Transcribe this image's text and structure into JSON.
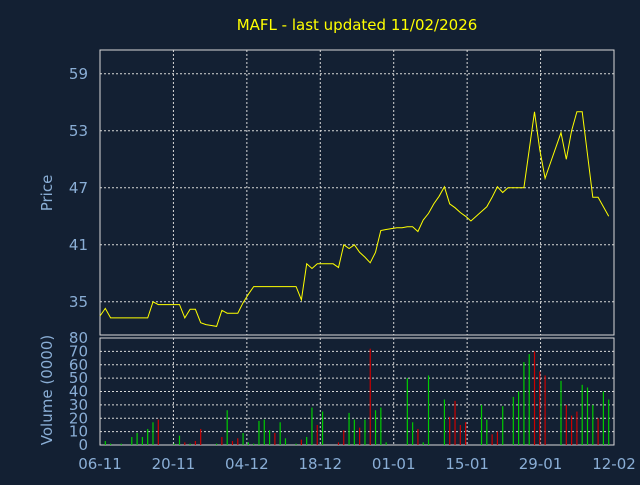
{
  "title": "MAFL - last updated 11/02/2026",
  "colors": {
    "background": "#132033",
    "frame": "#d8d8d8",
    "grid": "#d8d8d8",
    "price_line": "#ffff00",
    "title": "#ffff00",
    "axis_text": "#8aaed6",
    "volume_up": "#00cc00",
    "volume_down": "#cc0000"
  },
  "chart_data": [
    {
      "type": "line",
      "name": "price",
      "ylabel": "Price",
      "ylim": [
        31.5,
        61.5
      ],
      "yticks": [
        35,
        41,
        47,
        53,
        59
      ],
      "grid": true,
      "x_ticks": [
        "06-11",
        "20-11",
        "04-12",
        "18-12",
        "01-01",
        "15-01",
        "29-01",
        "12-02"
      ],
      "x_range": [
        0,
        97
      ],
      "x": [
        0,
        1,
        2,
        3,
        4,
        5,
        6,
        7,
        8,
        9,
        10,
        11,
        12,
        13,
        14,
        15,
        16,
        17,
        18,
        19,
        20,
        21,
        22,
        23,
        24,
        25,
        26,
        27,
        28,
        29,
        30,
        31,
        32,
        33,
        34,
        35,
        36,
        37,
        38,
        39,
        40,
        41,
        42,
        43,
        44,
        45,
        46,
        47,
        48,
        49,
        50,
        51,
        52,
        53,
        54,
        55,
        56,
        57,
        58,
        59,
        60,
        61,
        62,
        63,
        64,
        65,
        66,
        67,
        68,
        69,
        70,
        71,
        72,
        73,
        74,
        75,
        76,
        77,
        78,
        79,
        80,
        81,
        82,
        83,
        84,
        85,
        86,
        87,
        88,
        89,
        90,
        91,
        92,
        93,
        94,
        95,
        96
      ],
      "values": [
        33.5,
        34.3,
        33.3,
        33.3,
        33.3,
        33.3,
        33.3,
        33.3,
        33.3,
        33.3,
        35.0,
        34.7,
        34.7,
        34.7,
        34.7,
        34.7,
        33.3,
        34.2,
        34.2,
        32.8,
        32.6,
        32.5,
        32.4,
        34.1,
        33.8,
        33.8,
        33.8,
        34.9,
        35.8,
        36.6,
        36.6,
        36.6,
        36.6,
        36.6,
        36.6,
        36.6,
        36.6,
        36.6,
        35.2,
        39.0,
        38.5,
        39.0,
        39.0,
        39.0,
        39.0,
        38.6,
        41.0,
        40.6,
        41.0,
        40.2,
        39.7,
        39.1,
        40.2,
        42.5,
        42.6,
        42.7,
        42.8,
        42.8,
        42.9,
        42.9,
        42.4,
        43.6,
        44.3,
        45.3,
        46.1,
        47.1,
        45.3,
        44.9,
        44.4,
        44.0,
        43.5,
        44.0,
        44.5,
        45.0,
        46.0,
        47.1,
        46.5,
        47.0,
        47.0,
        47.0,
        47.0,
        51.0,
        55.0,
        51.0,
        48.0,
        49.6,
        51.2,
        52.8,
        50.0,
        53.0,
        55.0,
        55.0,
        50.5,
        46.0,
        46.0,
        45.0,
        44.0
      ]
    },
    {
      "type": "bar",
      "name": "volume",
      "ylabel": "Volume (0000)",
      "ylim": [
        0,
        80
      ],
      "yticks": [
        0,
        10,
        20,
        30,
        40,
        50,
        60,
        70,
        80
      ],
      "grid": true,
      "x_ticks": [
        "06-11",
        "20-11",
        "04-12",
        "18-12",
        "01-01",
        "15-01",
        "29-01",
        "12-02"
      ],
      "x_range": [
        0,
        97
      ],
      "bars": [
        {
          "x": 1,
          "v": 3,
          "up": true
        },
        {
          "x": 2,
          "v": 1,
          "up": true
        },
        {
          "x": 4,
          "v": 1,
          "up": true
        },
        {
          "x": 6,
          "v": 6,
          "up": true
        },
        {
          "x": 7,
          "v": 9,
          "up": true
        },
        {
          "x": 8,
          "v": 6,
          "up": true
        },
        {
          "x": 9,
          "v": 12,
          "up": true
        },
        {
          "x": 10,
          "v": 17,
          "up": true
        },
        {
          "x": 11,
          "v": 19,
          "up": false
        },
        {
          "x": 14,
          "v": 1,
          "up": true
        },
        {
          "x": 15,
          "v": 7,
          "up": true
        },
        {
          "x": 16,
          "v": 2,
          "up": false
        },
        {
          "x": 17,
          "v": 1,
          "up": true
        },
        {
          "x": 18,
          "v": 3,
          "up": false
        },
        {
          "x": 19,
          "v": 12,
          "up": false
        },
        {
          "x": 22,
          "v": 1,
          "up": true
        },
        {
          "x": 23,
          "v": 6,
          "up": false
        },
        {
          "x": 24,
          "v": 26,
          "up": true
        },
        {
          "x": 25,
          "v": 3,
          "up": false
        },
        {
          "x": 26,
          "v": 5,
          "up": false
        },
        {
          "x": 27,
          "v": 9,
          "up": true
        },
        {
          "x": 28,
          "v": 2,
          "up": true
        },
        {
          "x": 29,
          "v": 1,
          "up": true
        },
        {
          "x": 30,
          "v": 18,
          "up": true
        },
        {
          "x": 31,
          "v": 19,
          "up": true
        },
        {
          "x": 32,
          "v": 11,
          "up": true
        },
        {
          "x": 33,
          "v": 9,
          "up": false
        },
        {
          "x": 34,
          "v": 17,
          "up": true
        },
        {
          "x": 35,
          "v": 5,
          "up": true
        },
        {
          "x": 37,
          "v": 1,
          "up": true
        },
        {
          "x": 38,
          "v": 4,
          "up": false
        },
        {
          "x": 39,
          "v": 6,
          "up": true
        },
        {
          "x": 40,
          "v": 28,
          "up": true
        },
        {
          "x": 41,
          "v": 15,
          "up": false
        },
        {
          "x": 42,
          "v": 25,
          "up": true
        },
        {
          "x": 45,
          "v": 2,
          "up": false
        },
        {
          "x": 46,
          "v": 11,
          "up": false
        },
        {
          "x": 47,
          "v": 24,
          "up": true
        },
        {
          "x": 48,
          "v": 19,
          "up": true
        },
        {
          "x": 49,
          "v": 13,
          "up": false
        },
        {
          "x": 50,
          "v": 19,
          "up": true
        },
        {
          "x": 51,
          "v": 72,
          "up": false
        },
        {
          "x": 52,
          "v": 26,
          "up": true
        },
        {
          "x": 53,
          "v": 28,
          "up": true
        },
        {
          "x": 54,
          "v": 2,
          "up": true
        },
        {
          "x": 58,
          "v": 50,
          "up": true
        },
        {
          "x": 59,
          "v": 17,
          "up": true
        },
        {
          "x": 60,
          "v": 12,
          "up": false
        },
        {
          "x": 61,
          "v": 2,
          "up": true
        },
        {
          "x": 62,
          "v": 52,
          "up": true
        },
        {
          "x": 65,
          "v": 34,
          "up": true
        },
        {
          "x": 66,
          "v": 21,
          "up": false
        },
        {
          "x": 67,
          "v": 33,
          "up": false
        },
        {
          "x": 68,
          "v": 15,
          "up": false
        },
        {
          "x": 69,
          "v": 17,
          "up": false
        },
        {
          "x": 72,
          "v": 30,
          "up": true
        },
        {
          "x": 73,
          "v": 19,
          "up": true
        },
        {
          "x": 74,
          "v": 8,
          "up": false
        },
        {
          "x": 75,
          "v": 10,
          "up": false
        },
        {
          "x": 76,
          "v": 29,
          "up": true
        },
        {
          "x": 78,
          "v": 36,
          "up": true
        },
        {
          "x": 79,
          "v": 40,
          "up": true
        },
        {
          "x": 80,
          "v": 62,
          "up": true
        },
        {
          "x": 81,
          "v": 68,
          "up": true
        },
        {
          "x": 82,
          "v": 70,
          "up": false
        },
        {
          "x": 83,
          "v": 55,
          "up": false
        },
        {
          "x": 84,
          "v": 52,
          "up": false
        },
        {
          "x": 87,
          "v": 48,
          "up": true
        },
        {
          "x": 88,
          "v": 30,
          "up": false
        },
        {
          "x": 89,
          "v": 22,
          "up": false
        },
        {
          "x": 90,
          "v": 25,
          "up": false
        },
        {
          "x": 91,
          "v": 45,
          "up": true
        },
        {
          "x": 92,
          "v": 43,
          "up": true
        },
        {
          "x": 93,
          "v": 30,
          "up": true
        },
        {
          "x": 94,
          "v": 20,
          "up": false
        },
        {
          "x": 95,
          "v": 40,
          "up": true
        },
        {
          "x": 96,
          "v": 34,
          "up": true
        }
      ]
    }
  ]
}
